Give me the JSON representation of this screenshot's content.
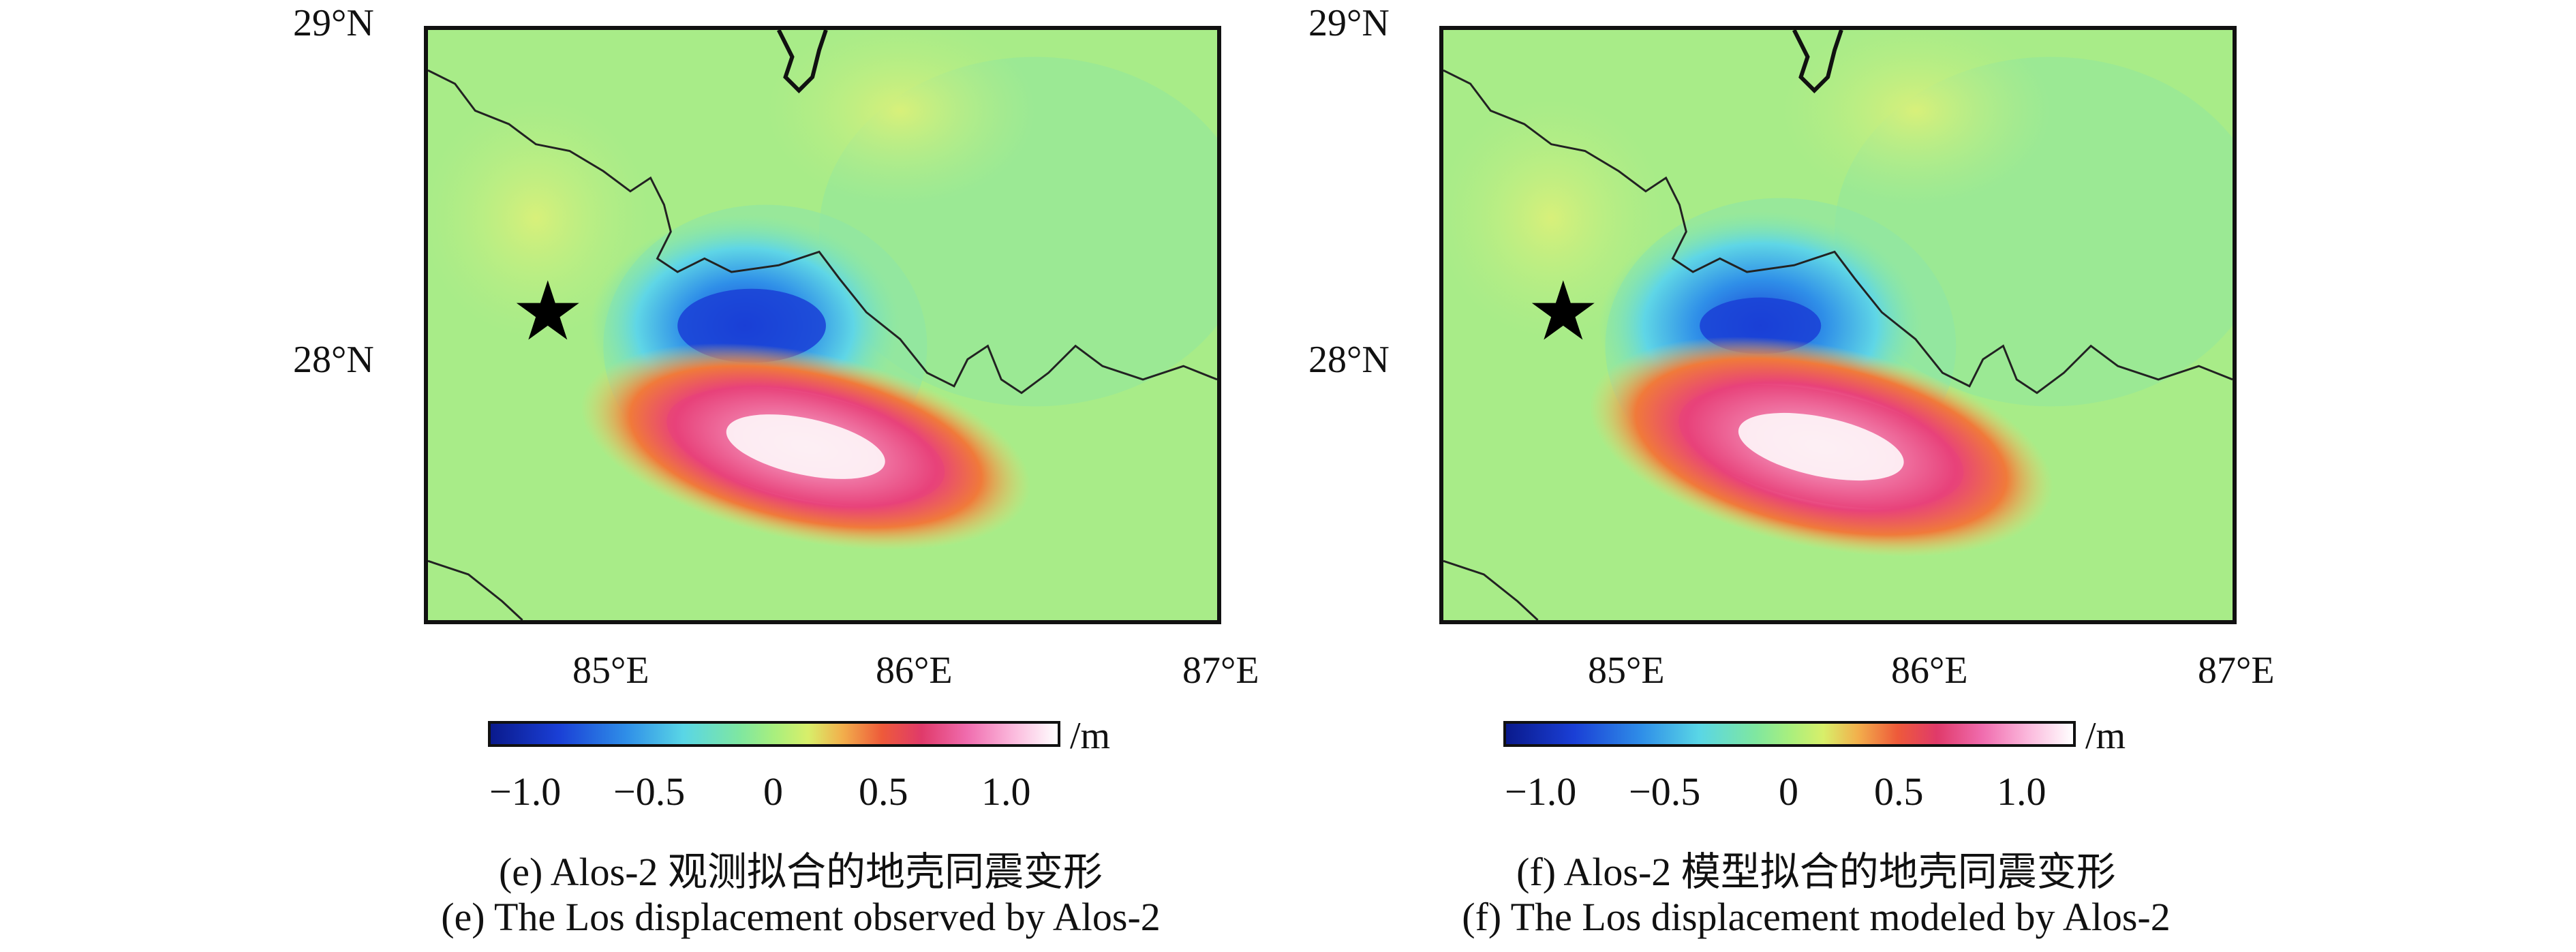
{
  "panels": [
    {
      "id": "e",
      "lat_labels": [
        "29°N",
        "28°N"
      ],
      "lon_labels": [
        "85°E",
        "86°E",
        "87°E"
      ],
      "colorbar": {
        "unit": "/m",
        "ticks": [
          "−1.0",
          "−0.5",
          "0",
          "0.5",
          "1.0"
        ]
      },
      "caption_cn": "(e) Alos-2 观测拟合的地壳同震变形",
      "caption_en": "(e) The Los displacement observed by Alos-2"
    },
    {
      "id": "f",
      "lat_labels": [
        "29°N",
        "28°N"
      ],
      "lon_labels": [
        "85°E",
        "86°E",
        "87°E"
      ],
      "colorbar": {
        "unit": "/m",
        "ticks": [
          "−1.0",
          "−0.5",
          "0",
          "0.5",
          "1.0"
        ]
      },
      "caption_cn": "(f) Alos-2 模型拟合的地壳同震变形",
      "caption_en": "(f) The Los displacement modeled by Alos-2"
    }
  ],
  "symbols": {
    "epicenter": "★"
  },
  "colors": {
    "background_field": "#a8ec88",
    "uplift_core": "#ffffff",
    "uplift_ring": "#e8427a",
    "subsidence_core": "#1a3fd6",
    "subsidence_ring": "#4fc6ec",
    "border_line": "#222222"
  }
}
